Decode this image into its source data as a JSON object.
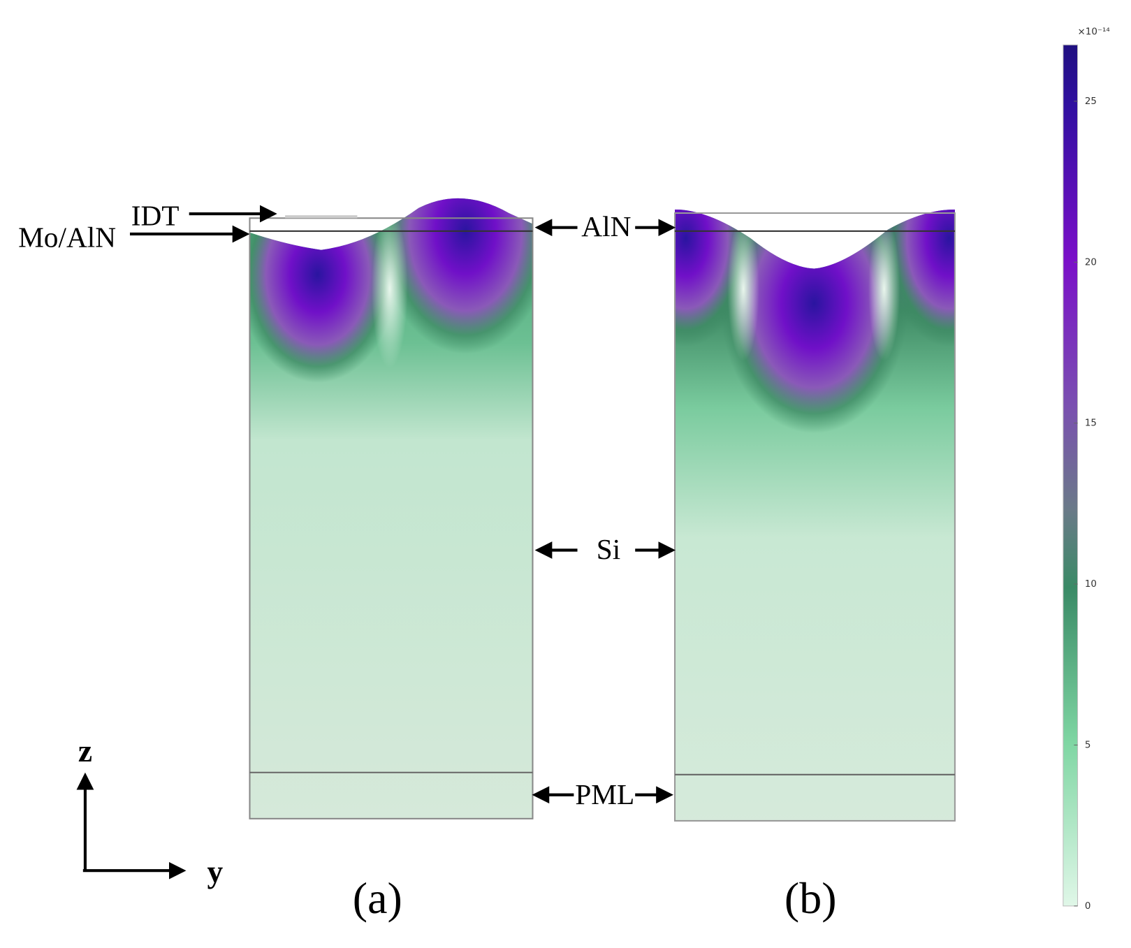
{
  "labels": {
    "idt": "IDT",
    "mo_aln": "Mo/AlN",
    "aln": "AlN",
    "si": "Si",
    "pml": "PML",
    "z_axis": "z",
    "y_axis": "y"
  },
  "panels": {
    "a": "(a)",
    "b": "(b)"
  },
  "colorbar": {
    "label": "×10⁻¹⁴",
    "range": [
      0,
      26.75
    ],
    "ticks": [
      0,
      5,
      10,
      15,
      20,
      25
    ]
  }
}
